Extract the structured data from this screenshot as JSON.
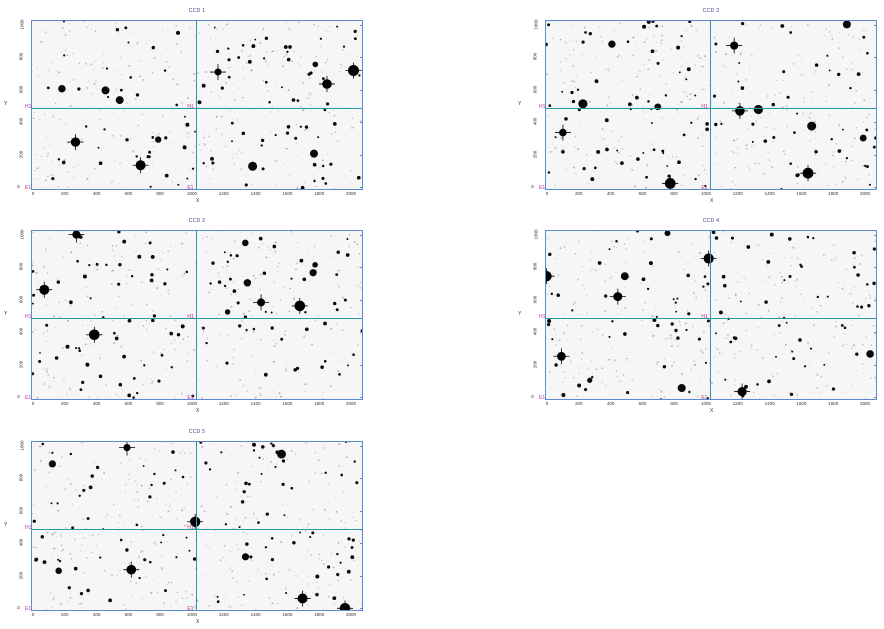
{
  "panels": [
    {
      "title": "CCD 1",
      "xlabel": "X",
      "ylabel": "Y",
      "xticks": [
        "0",
        "200",
        "400",
        "600",
        "800",
        "1000",
        "1200",
        "1400",
        "1600",
        "1800",
        "2000"
      ],
      "yticks": [
        "0",
        "200",
        "400",
        "600",
        "800",
        "1000"
      ],
      "amp_top": "H1",
      "amp_bottom": "E1"
    },
    {
      "title": "CCD 3",
      "xlabel": "X",
      "ylabel": "Y",
      "xticks": [
        "0",
        "200",
        "400",
        "600",
        "800",
        "1000",
        "1200",
        "1400",
        "1600",
        "1800",
        "2000"
      ],
      "yticks": [
        "0",
        "200",
        "400",
        "600",
        "800",
        "1000"
      ],
      "amp_top": "H1",
      "amp_bottom": "E1"
    },
    {
      "title": "CCD 2",
      "xlabel": "X",
      "ylabel": "Y",
      "xticks": [
        "0",
        "200",
        "400",
        "600",
        "800",
        "1000",
        "1200",
        "1400",
        "1600",
        "1800",
        "2000"
      ],
      "yticks": [
        "0",
        "200",
        "400",
        "600",
        "800",
        "1000"
      ],
      "amp_top": "H1",
      "amp_bottom": "E1"
    },
    {
      "title": "CCD 4",
      "xlabel": "X",
      "ylabel": "Y",
      "xticks": [
        "0",
        "200",
        "400",
        "600",
        "800",
        "1000",
        "1200",
        "1400",
        "1600",
        "1800",
        "2000"
      ],
      "yticks": [
        "0",
        "200",
        "400",
        "600",
        "800",
        "1000"
      ],
      "amp_top": "H1",
      "amp_bottom": "E1"
    },
    {
      "title": "CCD 5",
      "xlabel": "X",
      "ylabel": "Y",
      "xticks": [
        "0",
        "200",
        "400",
        "600",
        "800",
        "1000",
        "1200",
        "1400",
        "1600",
        "1800",
        "2000"
      ],
      "yticks": [
        "0",
        "200",
        "400",
        "600",
        "800",
        "1000"
      ],
      "amp_top": "H1",
      "amp_bottom": "E1"
    }
  ],
  "colors": {
    "frame": "#5a8bd0",
    "amp_lines": "#2a9aa8",
    "amp_labels": "#c0309a",
    "stars": "#0a0a0a"
  }
}
